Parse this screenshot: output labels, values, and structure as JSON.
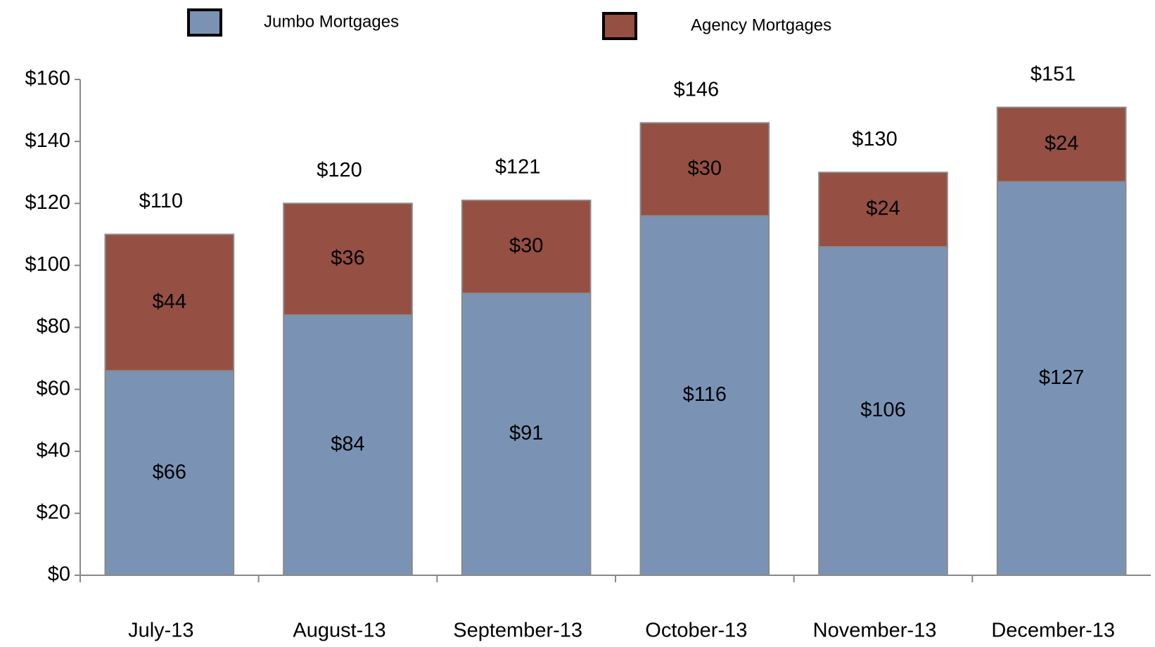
{
  "chart_data": {
    "type": "stacked_bar",
    "categories": [
      "July-13",
      "August-13",
      "September-13",
      "October-13",
      "November-13",
      "December-13"
    ],
    "series": [
      {
        "name": "Jumbo Mortgages",
        "color": "#7a93b5",
        "values": [
          66,
          84,
          91,
          116,
          106,
          127
        ],
        "value_labels": [
          "$66",
          "$84",
          "$91",
          "$116",
          "$106",
          "$127"
        ]
      },
      {
        "name": "Agency Mortgages",
        "color": "#954f43",
        "values": [
          44,
          36,
          30,
          30,
          24,
          24
        ],
        "value_labels": [
          "$44",
          "$36",
          "$30",
          "$30",
          "$24",
          "$24"
        ]
      }
    ],
    "total_labels": [
      "$110",
      "$120",
      "$121",
      "$146",
      "$130",
      "$151"
    ],
    "ylim": [
      0,
      160
    ],
    "yticks": [
      {
        "value": 0,
        "label": "$0"
      },
      {
        "value": 20,
        "label": "$20"
      },
      {
        "value": 40,
        "label": "$40"
      },
      {
        "value": 60,
        "label": "$60"
      },
      {
        "value": 80,
        "label": "$80"
      },
      {
        "value": 100,
        "label": "$100"
      },
      {
        "value": 120,
        "label": "$120"
      },
      {
        "value": 140,
        "label": "$140"
      },
      {
        "value": 160,
        "label": "$160"
      }
    ],
    "grid": false
  }
}
